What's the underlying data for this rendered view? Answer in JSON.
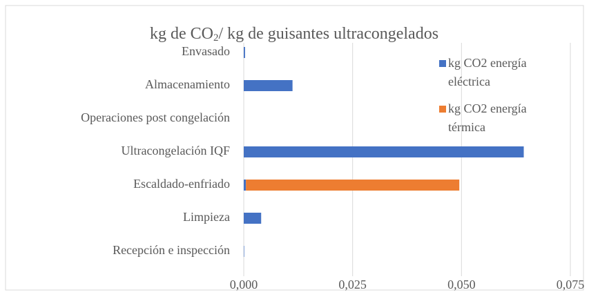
{
  "chart_data": {
    "type": "bar",
    "orientation": "horizontal",
    "stacked": true,
    "title": [
      "kg de CO",
      "2",
      "/ kg de guisantes ultracongelados"
    ],
    "categories": [
      "Recepción e inspección",
      "Limpieza",
      "Escaldado-enfriado",
      "Ultracongelación IQF",
      "Operaciones post congelación",
      "Almacenamiento",
      "Envasado"
    ],
    "series": [
      {
        "name": "kg CO2 energía eléctrica",
        "color": "#4472c4",
        "values": [
          0.0001,
          0.004,
          0.0005,
          0.0643,
          0,
          0.0112,
          0.0003
        ]
      },
      {
        "name": "kg CO2 energía térmica",
        "color": "#ed7d31",
        "values": [
          0,
          0,
          0.049,
          0,
          0,
          0,
          0
        ]
      }
    ],
    "xlim": [
      0,
      0.075
    ],
    "xticks": [
      {
        "value": 0,
        "label": "0,000"
      },
      {
        "value": 0.025,
        "label": "0,025"
      },
      {
        "value": 0.05,
        "label": "0,050"
      },
      {
        "value": 0.075,
        "label": "0,075"
      }
    ],
    "grid": true,
    "legend": "right"
  }
}
